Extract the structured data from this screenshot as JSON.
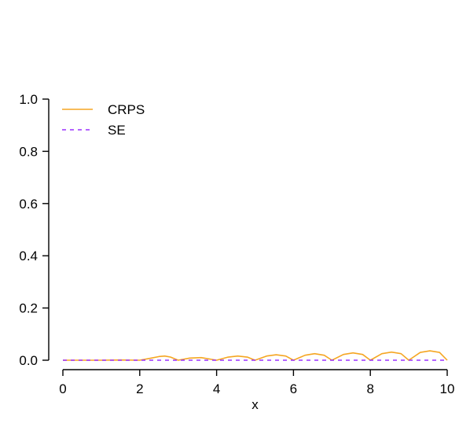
{
  "chart_data": {
    "type": "line",
    "xlabel": "x",
    "ylabel": "",
    "xlim": [
      0,
      10
    ],
    "ylim": [
      0,
      1
    ],
    "x_ticks": [
      "0",
      "2",
      "4",
      "6",
      "8",
      "10"
    ],
    "y_ticks": [
      "0.0",
      "0.2",
      "0.4",
      "0.6",
      "0.8",
      "1.0"
    ],
    "legend_position": "top-left",
    "grid": false,
    "series": [
      {
        "name": "CRPS",
        "color": "#f5a623",
        "style": "solid",
        "x": [
          0,
          1.0,
          1.5,
          2.0,
          2.3,
          2.5,
          2.65,
          2.8,
          3.0,
          3.3,
          3.6,
          4.0,
          4.3,
          4.55,
          4.8,
          5.0,
          5.3,
          5.55,
          5.8,
          6.0,
          6.3,
          6.55,
          6.8,
          7.0,
          7.3,
          7.55,
          7.8,
          8.0,
          8.3,
          8.55,
          8.8,
          9.0,
          9.3,
          9.55,
          9.8,
          10.0
        ],
        "y": [
          0.0,
          0.0,
          0.001,
          0.0,
          0.008,
          0.014,
          0.016,
          0.012,
          0.0,
          0.008,
          0.01,
          0.0,
          0.012,
          0.016,
          0.012,
          0.0,
          0.016,
          0.021,
          0.016,
          0.0,
          0.019,
          0.025,
          0.019,
          0.0,
          0.022,
          0.028,
          0.022,
          0.0,
          0.025,
          0.031,
          0.025,
          0.0,
          0.03,
          0.036,
          0.03,
          0.0
        ]
      },
      {
        "name": "SE",
        "color": "#9b30ff",
        "style": "dashed",
        "x": [
          0,
          10
        ],
        "y": [
          0.0,
          0.0
        ]
      }
    ]
  }
}
